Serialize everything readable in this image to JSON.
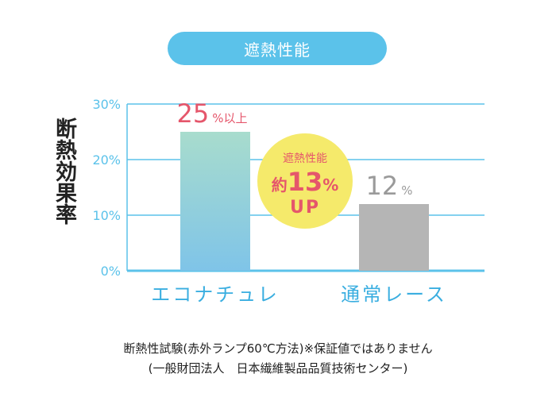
{
  "chart_data": {
    "type": "bar",
    "title": "遮熱性能",
    "ylabel": "断熱効果率",
    "xlabel": "",
    "ylim": [
      0,
      30
    ],
    "yticks": [
      "0%",
      "10%",
      "20%",
      "30%"
    ],
    "yticks_values": [
      0,
      10,
      20,
      30
    ],
    "grid": true,
    "categories": [
      "エコナチュレ",
      "通常レース"
    ],
    "values": [
      25,
      12
    ],
    "data_labels": [
      {
        "num": "25",
        "unit": "%以上"
      },
      {
        "num": "12",
        "unit": "%"
      }
    ],
    "annotation": {
      "line1": "遮熱性能",
      "prefix": "約",
      "num": "13",
      "unit": "%",
      "line3": "UP"
    }
  },
  "colors": {
    "accent": "#5bc2ea",
    "bar1_top": "#a8dccd",
    "bar1_bottom": "#7fc4e8",
    "bar2": "#b5b5b5",
    "label_red": "#e5566b",
    "label_gray": "#9a9a9a",
    "badge": "#f5ea6b",
    "badge_text": "#e5566b",
    "category_text": "#3aaee0"
  },
  "notes": {
    "line1": "断熱性試験(赤外ランプ60℃方法)※保証値ではありません",
    "line2": "(一般財団法人　日本繊維製品品質技術センター)"
  }
}
